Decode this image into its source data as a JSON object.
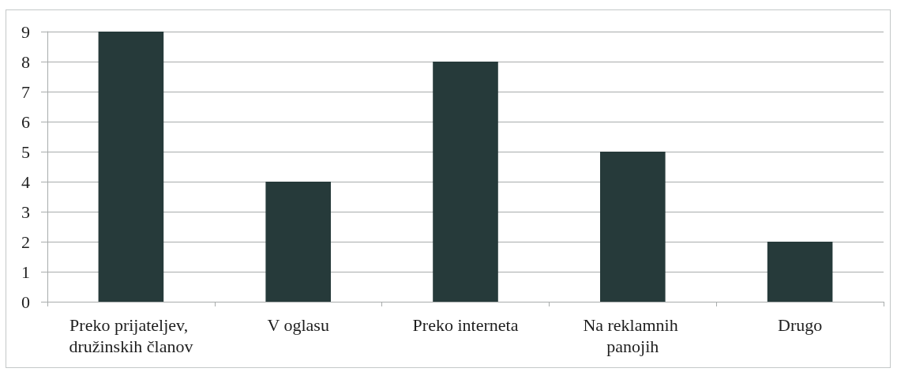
{
  "chart_data": {
    "type": "bar",
    "categories": [
      "Preko prijateljev, družinskih članov",
      "V oglasu",
      "Preko interneta",
      "Na reklamnih panojih",
      "Drugo"
    ],
    "values": [
      9,
      4,
      8,
      5,
      2
    ],
    "color": "#263a3a",
    "ylim": [
      0,
      9
    ],
    "yticks": [
      0,
      1,
      2,
      3,
      4,
      5,
      6,
      7,
      8,
      9
    ],
    "grid": "y"
  }
}
